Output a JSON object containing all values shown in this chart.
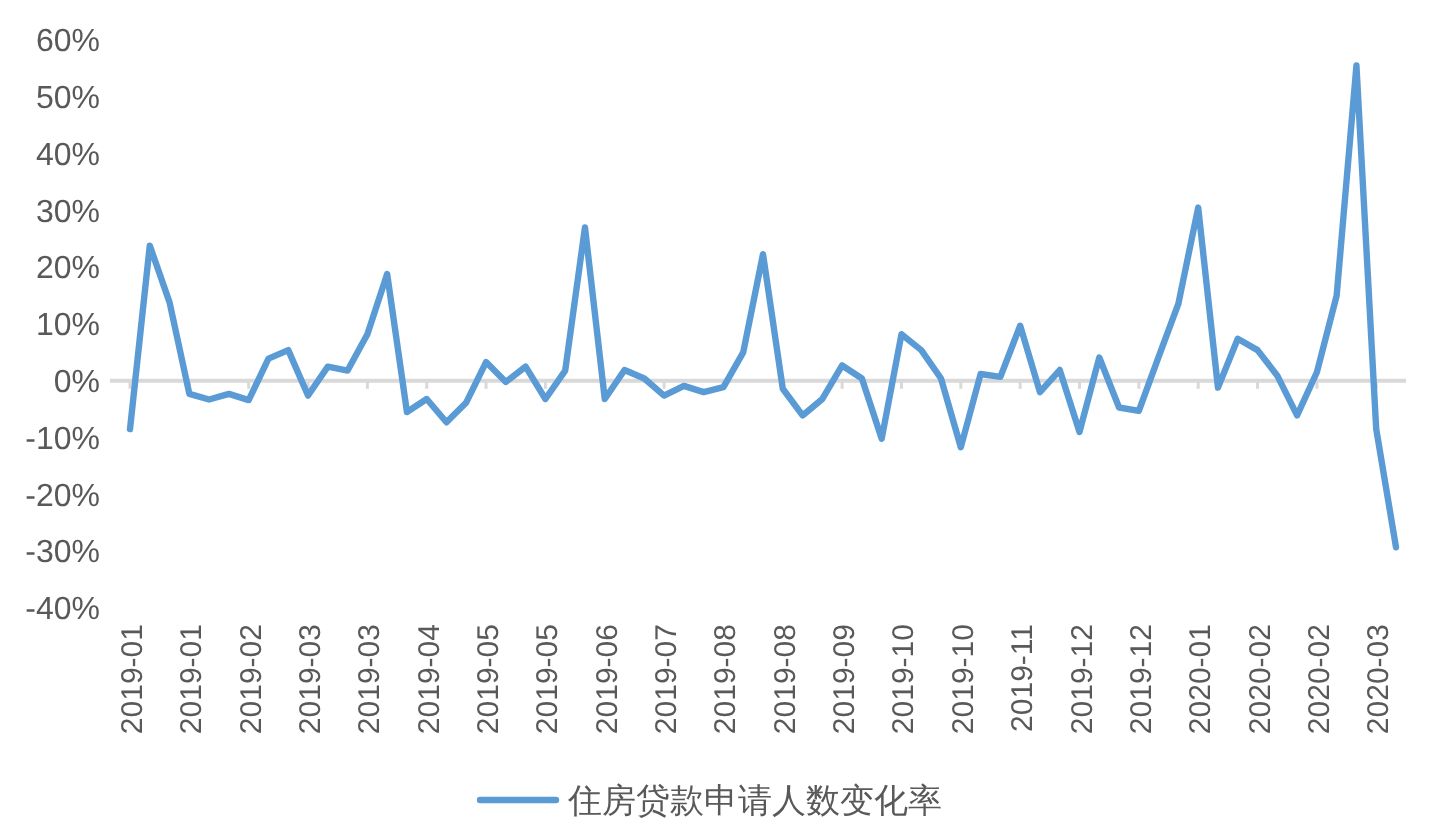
{
  "chart_data": {
    "type": "line",
    "categories": [
      "2019-01",
      null,
      null,
      "2019-01",
      null,
      null,
      "2019-02",
      null,
      null,
      "2019-03",
      null,
      null,
      "2019-03",
      null,
      null,
      "2019-04",
      null,
      null,
      "2019-05",
      null,
      null,
      "2019-05",
      null,
      null,
      "2019-06",
      null,
      null,
      "2019-07",
      null,
      null,
      "2019-08",
      null,
      null,
      "2019-08",
      null,
      null,
      "2019-09",
      null,
      null,
      "2019-10",
      null,
      null,
      "2019-10",
      null,
      null,
      "2019-11",
      null,
      null,
      "2019-12",
      null,
      null,
      "2019-12",
      null,
      null,
      "2020-01",
      null,
      null,
      "2020-02",
      null,
      null,
      "2020-02",
      null,
      null,
      "2020-03",
      null
    ],
    "series": [
      {
        "name": "住房贷款申请人数变化率",
        "color": "#5b9bd5",
        "values": [
          -8.5,
          23.8,
          13.8,
          -2.3,
          -3.3,
          -2.3,
          -3.4,
          3.9,
          5.4,
          -2.6,
          2.5,
          1.8,
          8.2,
          18.8,
          -5.5,
          -3.2,
          -7.3,
          -3.8,
          3.3,
          -0.2,
          2.5,
          -3.2,
          1.8,
          27.0,
          -3.2,
          1.9,
          0.4,
          -2.6,
          -0.9,
          -2.0,
          -1.1,
          5.0,
          22.3,
          -1.4,
          -6.1,
          -3.2,
          2.7,
          0.4,
          -10.2,
          8.2,
          5.4,
          0.4,
          -11.7,
          1.2,
          0.7,
          9.7,
          -2.0,
          1.9,
          -9.0,
          4.1,
          -4.7,
          -5.3,
          4.2,
          13.6,
          30.5,
          -1.2,
          7.4,
          5.4,
          0.9,
          -6.1,
          1.5,
          15.0,
          55.5,
          -8.5,
          -29.3
        ]
      }
    ],
    "ylim": [
      -40,
      60
    ],
    "yticks": [
      {
        "value": -40,
        "label": "-40%"
      },
      {
        "value": -30,
        "label": "-30%"
      },
      {
        "value": -20,
        "label": "-20%"
      },
      {
        "value": -10,
        "label": "-10%"
      },
      {
        "value": 0,
        "label": "0%"
      },
      {
        "value": 10,
        "label": "10%"
      },
      {
        "value": 20,
        "label": "20%"
      },
      {
        "value": 30,
        "label": "30%"
      },
      {
        "value": 40,
        "label": "40%"
      },
      {
        "value": 50,
        "label": "50%"
      },
      {
        "value": 60,
        "label": "60%"
      }
    ],
    "legend": "bottom"
  }
}
